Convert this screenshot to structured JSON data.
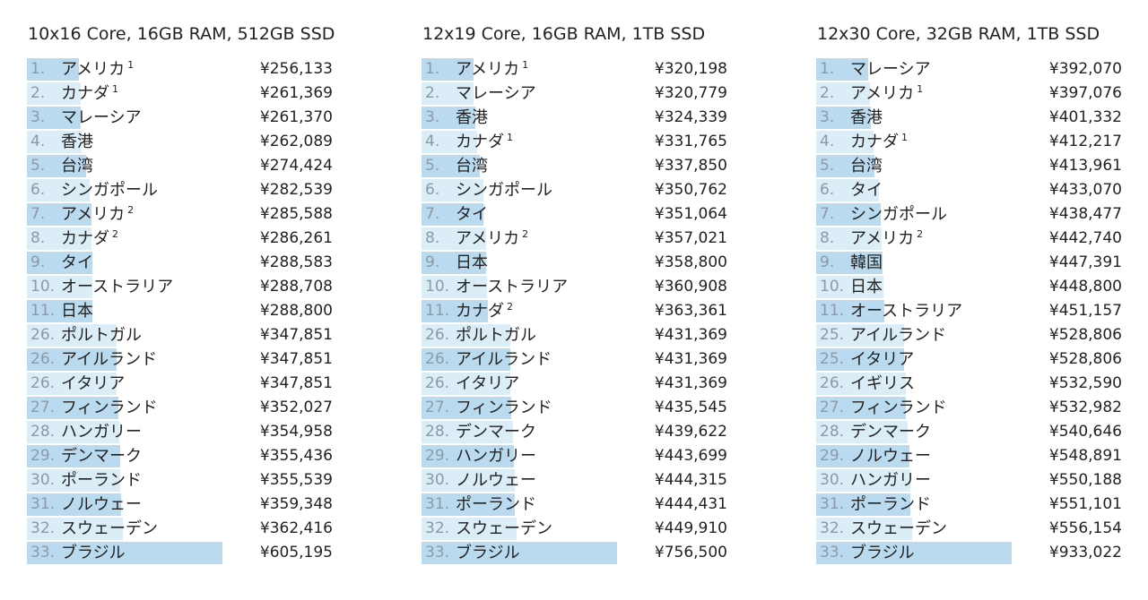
{
  "colors": {
    "bar_odd": "#badbef",
    "bar_even": "#dbedf7",
    "rank_text": "#8a9aa6"
  },
  "chart_data": [
    {
      "type": "bar",
      "title": "10x16 Core, 16GB RAM, 512GB SSD",
      "currency": "¥",
      "rows": [
        {
          "rank": "1.",
          "country": "アメリカ",
          "note": "1",
          "value": 256133,
          "price": "¥256,133"
        },
        {
          "rank": "2.",
          "country": "カナダ",
          "note": "1",
          "value": 261369,
          "price": "¥261,369"
        },
        {
          "rank": "3.",
          "country": "マレーシア",
          "note": "",
          "value": 261370,
          "price": "¥261,370"
        },
        {
          "rank": "4.",
          "country": "香港",
          "note": "",
          "value": 262089,
          "price": "¥262,089"
        },
        {
          "rank": "5.",
          "country": "台湾",
          "note": "",
          "value": 274424,
          "price": "¥274,424"
        },
        {
          "rank": "6.",
          "country": "シンガポール",
          "note": "",
          "value": 282539,
          "price": "¥282,539"
        },
        {
          "rank": "7.",
          "country": "アメリカ",
          "note": "2",
          "value": 285588,
          "price": "¥285,588"
        },
        {
          "rank": "8.",
          "country": "カナダ",
          "note": "2",
          "value": 286261,
          "price": "¥286,261"
        },
        {
          "rank": "9.",
          "country": "タイ",
          "note": "",
          "value": 288583,
          "price": "¥288,583"
        },
        {
          "rank": "10.",
          "country": "オーストラリア",
          "note": "",
          "value": 288708,
          "price": "¥288,708"
        },
        {
          "rank": "11.",
          "country": "日本",
          "note": "",
          "value": 288800,
          "price": "¥288,800"
        },
        {
          "rank": "26.",
          "country": "ポルトガル",
          "note": "",
          "value": 347851,
          "price": "¥347,851"
        },
        {
          "rank": "26.",
          "country": "アイルランド",
          "note": "",
          "value": 347851,
          "price": "¥347,851"
        },
        {
          "rank": "26.",
          "country": "イタリア",
          "note": "",
          "value": 347851,
          "price": "¥347,851"
        },
        {
          "rank": "27.",
          "country": "フィンランド",
          "note": "",
          "value": 352027,
          "price": "¥352,027"
        },
        {
          "rank": "28.",
          "country": "ハンガリー",
          "note": "",
          "value": 354958,
          "price": "¥354,958"
        },
        {
          "rank": "29.",
          "country": "デンマーク",
          "note": "",
          "value": 355436,
          "price": "¥355,436"
        },
        {
          "rank": "30.",
          "country": "ポーランド",
          "note": "",
          "value": 355539,
          "price": "¥355,539"
        },
        {
          "rank": "31.",
          "country": "ノルウェー",
          "note": "",
          "value": 359348,
          "price": "¥359,348"
        },
        {
          "rank": "32.",
          "country": "スウェーデン",
          "note": "",
          "value": 362416,
          "price": "¥362,416"
        },
        {
          "rank": "33.",
          "country": "ブラジル",
          "note": "",
          "value": 605195,
          "price": "¥605,195"
        }
      ]
    },
    {
      "type": "bar",
      "title": "12x19 Core, 16GB RAM, 1TB SSD",
      "currency": "¥",
      "rows": [
        {
          "rank": "1.",
          "country": "アメリカ",
          "note": "1",
          "value": 320198,
          "price": "¥320,198"
        },
        {
          "rank": "2.",
          "country": "マレーシア",
          "note": "",
          "value": 320779,
          "price": "¥320,779"
        },
        {
          "rank": "3.",
          "country": "香港",
          "note": "",
          "value": 324339,
          "price": "¥324,339"
        },
        {
          "rank": "4.",
          "country": "カナダ",
          "note": "1",
          "value": 331765,
          "price": "¥331,765"
        },
        {
          "rank": "5.",
          "country": "台湾",
          "note": "",
          "value": 337850,
          "price": "¥337,850"
        },
        {
          "rank": "6.",
          "country": "シンガポール",
          "note": "",
          "value": 350762,
          "price": "¥350,762"
        },
        {
          "rank": "7.",
          "country": "タイ",
          "note": "",
          "value": 351064,
          "price": "¥351,064"
        },
        {
          "rank": "8.",
          "country": "アメリカ",
          "note": "2",
          "value": 357021,
          "price": "¥357,021"
        },
        {
          "rank": "9.",
          "country": "日本",
          "note": "",
          "value": 358800,
          "price": "¥358,800"
        },
        {
          "rank": "10.",
          "country": "オーストラリア",
          "note": "",
          "value": 360908,
          "price": "¥360,908"
        },
        {
          "rank": "11.",
          "country": "カナダ",
          "note": "2",
          "value": 363361,
          "price": "¥363,361"
        },
        {
          "rank": "26.",
          "country": "ポルトガル",
          "note": "",
          "value": 431369,
          "price": "¥431,369"
        },
        {
          "rank": "26.",
          "country": "アイルランド",
          "note": "",
          "value": 431369,
          "price": "¥431,369"
        },
        {
          "rank": "26.",
          "country": "イタリア",
          "note": "",
          "value": 431369,
          "price": "¥431,369"
        },
        {
          "rank": "27.",
          "country": "フィンランド",
          "note": "",
          "value": 435545,
          "price": "¥435,545"
        },
        {
          "rank": "28.",
          "country": "デンマーク",
          "note": "",
          "value": 439622,
          "price": "¥439,622"
        },
        {
          "rank": "29.",
          "country": "ハンガリー",
          "note": "",
          "value": 443699,
          "price": "¥443,699"
        },
        {
          "rank": "30.",
          "country": "ノルウェー",
          "note": "",
          "value": 444315,
          "price": "¥444,315"
        },
        {
          "rank": "31.",
          "country": "ポーランド",
          "note": "",
          "value": 444431,
          "price": "¥444,431"
        },
        {
          "rank": "32.",
          "country": "スウェーデン",
          "note": "",
          "value": 449910,
          "price": "¥449,910"
        },
        {
          "rank": "33.",
          "country": "ブラジル",
          "note": "",
          "value": 756500,
          "price": "¥756,500"
        }
      ]
    },
    {
      "type": "bar",
      "title": "12x30 Core, 32GB RAM, 1TB SSD",
      "currency": "¥",
      "rows": [
        {
          "rank": "1.",
          "country": "マレーシア",
          "note": "",
          "value": 392070,
          "price": "¥392,070"
        },
        {
          "rank": "2.",
          "country": "アメリカ",
          "note": "1",
          "value": 397076,
          "price": "¥397,076"
        },
        {
          "rank": "3.",
          "country": "香港",
          "note": "",
          "value": 401332,
          "price": "¥401,332"
        },
        {
          "rank": "4.",
          "country": "カナダ",
          "note": "1",
          "value": 412217,
          "price": "¥412,217"
        },
        {
          "rank": "5.",
          "country": "台湾",
          "note": "",
          "value": 413961,
          "price": "¥413,961"
        },
        {
          "rank": "6.",
          "country": "タイ",
          "note": "",
          "value": 433070,
          "price": "¥433,070"
        },
        {
          "rank": "7.",
          "country": "シンガポール",
          "note": "",
          "value": 438477,
          "price": "¥438,477"
        },
        {
          "rank": "8.",
          "country": "アメリカ",
          "note": "2",
          "value": 442740,
          "price": "¥442,740"
        },
        {
          "rank": "9.",
          "country": "韓国",
          "note": "",
          "value": 447391,
          "price": "¥447,391"
        },
        {
          "rank": "10.",
          "country": "日本",
          "note": "",
          "value": 448800,
          "price": "¥448,800"
        },
        {
          "rank": "11.",
          "country": "オーストラリア",
          "note": "",
          "value": 451157,
          "price": "¥451,157"
        },
        {
          "rank": "25.",
          "country": "アイルランド",
          "note": "",
          "value": 528806,
          "price": "¥528,806"
        },
        {
          "rank": "25.",
          "country": "イタリア",
          "note": "",
          "value": 528806,
          "price": "¥528,806"
        },
        {
          "rank": "26.",
          "country": "イギリス",
          "note": "",
          "value": 532590,
          "price": "¥532,590"
        },
        {
          "rank": "27.",
          "country": "フィンランド",
          "note": "",
          "value": 532982,
          "price": "¥532,982"
        },
        {
          "rank": "28.",
          "country": "デンマーク",
          "note": "",
          "value": 540646,
          "price": "¥540,646"
        },
        {
          "rank": "29.",
          "country": "ノルウェー",
          "note": "",
          "value": 548891,
          "price": "¥548,891"
        },
        {
          "rank": "30.",
          "country": "ハンガリー",
          "note": "",
          "value": 550188,
          "price": "¥550,188"
        },
        {
          "rank": "31.",
          "country": "ポーランド",
          "note": "",
          "value": 551101,
          "price": "¥551,101"
        },
        {
          "rank": "32.",
          "country": "スウェーデン",
          "note": "",
          "value": 556154,
          "price": "¥556,154"
        },
        {
          "rank": "33.",
          "country": "ブラジル",
          "note": "",
          "value": 933022,
          "price": "¥933,022"
        }
      ]
    }
  ]
}
